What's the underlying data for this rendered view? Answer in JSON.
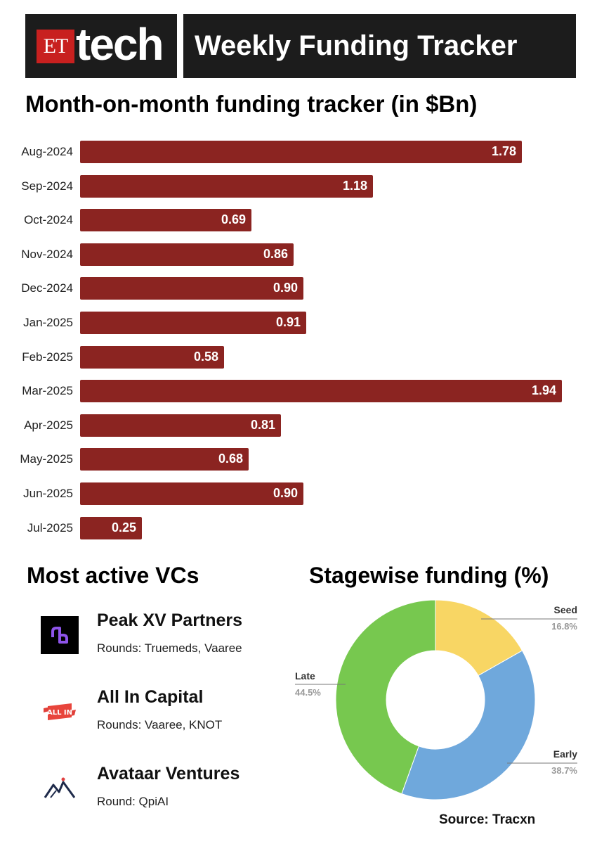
{
  "header": {
    "logo_et": "ET",
    "logo_word": "tech",
    "title": "Weekly Funding Tracker"
  },
  "chart_data": [
    {
      "type": "bar",
      "orientation": "horizontal",
      "title": "Month-on-month funding tracker (in $Bn)",
      "categories": [
        "Aug-2024",
        "Sep-2024",
        "Oct-2024",
        "Nov-2024",
        "Dec-2024",
        "Jan-2025",
        "Feb-2025",
        "Mar-2025",
        "Apr-2025",
        "May-2025",
        "Jun-2025",
        "Jul-2025"
      ],
      "values": [
        1.78,
        1.18,
        0.69,
        0.86,
        0.9,
        0.91,
        0.58,
        1.94,
        0.81,
        0.68,
        0.9,
        0.25
      ],
      "value_labels": [
        "1.78",
        "1.18",
        "0.69",
        "0.86",
        "0.90",
        "0.91",
        "0.58",
        "1.94",
        "0.81",
        "0.68",
        "0.90",
        "0.25"
      ],
      "xlim": [
        0,
        1.94
      ],
      "bar_color": "#8b2421"
    },
    {
      "type": "pie",
      "variant": "donut",
      "title": "Stagewise funding (%)",
      "slices": [
        {
          "label": "Seed",
          "value": 16.8,
          "display": "16.8%",
          "color": "#f8d664"
        },
        {
          "label": "Early",
          "value": 38.7,
          "display": "38.7%",
          "color": "#6fa8dc"
        },
        {
          "label": "Late",
          "value": 44.5,
          "display": "44.5%",
          "color": "#77c84f"
        }
      ]
    }
  ],
  "vcs": {
    "title": "Most active VCs",
    "items": [
      {
        "name": "Peak XV Partners",
        "rounds": "Rounds: Truemeds, Vaaree",
        "icon": "peak-xv-logo"
      },
      {
        "name": "All In Capital",
        "rounds": "Rounds: Vaaree, KNOT",
        "icon": "all-in-logo",
        "icon_text": "ALL IN"
      },
      {
        "name": "Avataar Ventures",
        "rounds": "Round: QpiAI",
        "icon": "avataar-logo"
      }
    ]
  },
  "source": "Source: Tracxn"
}
